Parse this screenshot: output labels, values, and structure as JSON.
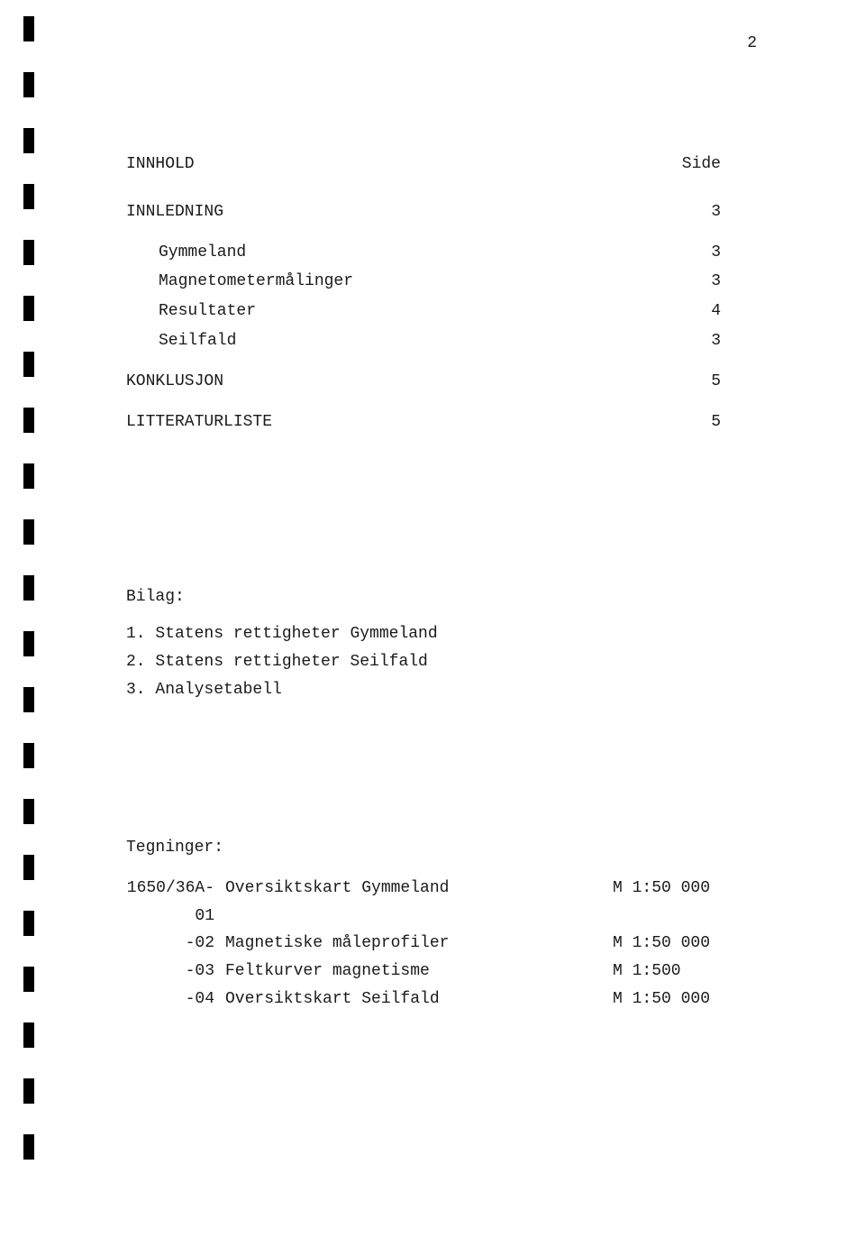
{
  "page_number": "2",
  "toc": {
    "heading": "INNHOLD",
    "page_label": "Side",
    "entries": [
      {
        "title": "INNLEDNING",
        "page": "3",
        "indent": false
      },
      {
        "title": "Gymmeland",
        "page": "3",
        "indent": true
      },
      {
        "title": "Magnetometermålinger",
        "page": "3",
        "indent": true
      },
      {
        "title": "Resultater",
        "page": "4",
        "indent": true
      },
      {
        "title": "Seilfald",
        "page": "3",
        "indent": true
      },
      {
        "title": "KONKLUSJON",
        "page": "5",
        "indent": false
      },
      {
        "title": "LITTERATURLISTE",
        "page": "5",
        "indent": false
      }
    ]
  },
  "bilag": {
    "heading": "Bilag:",
    "items": [
      "1. Statens rettigheter Gymmeland",
      "2. Statens rettigheter Seilfald",
      "3. Analysetabell"
    ]
  },
  "tegninger": {
    "heading": "Tegninger:",
    "rows": [
      {
        "code": "1650/36A-01",
        "desc": "Oversiktskart Gymmeland",
        "scale": "M 1:50 000"
      },
      {
        "code": "-02",
        "desc": "Magnetiske måleprofiler",
        "scale": "M 1:50 000"
      },
      {
        "code": "-03",
        "desc": "Feltkurver magnetisme",
        "scale": "M 1:500"
      },
      {
        "code": "-04",
        "desc": "Oversiktskart Seilfald",
        "scale": "M 1:50 000"
      }
    ]
  }
}
